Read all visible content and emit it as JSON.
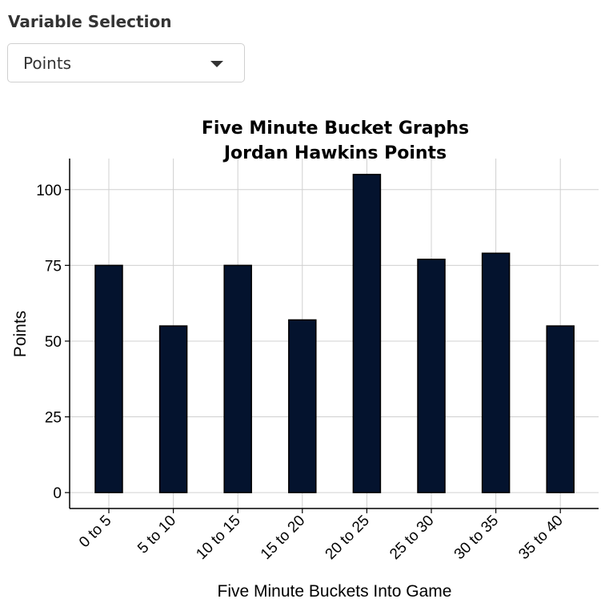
{
  "control": {
    "label": "Variable Selection",
    "selected": "Points"
  },
  "icons": {
    "dropdown": "chevron-down-icon"
  },
  "colors": {
    "bar_fill": "#04132e",
    "bar_stroke": "#000000",
    "grid": "#d0d0d0"
  },
  "chart_data": {
    "type": "bar",
    "title_lines": [
      "Five Minute Bucket Graphs",
      "Jordan Hawkins Points"
    ],
    "xlabel": "Five Minute Buckets Into Game",
    "ylabel": "Points",
    "categories": [
      "0 to 5",
      "5 to 10",
      "10 to 15",
      "15 to 20",
      "20 to 25",
      "25 to 30",
      "30 to 35",
      "35 to 40"
    ],
    "values": [
      75,
      55,
      75,
      57,
      105,
      77,
      79,
      55
    ],
    "yticks": [
      0,
      25,
      50,
      75,
      100
    ],
    "ylim": [
      -5.25,
      110.25
    ],
    "grid": true,
    "legend": "none"
  }
}
